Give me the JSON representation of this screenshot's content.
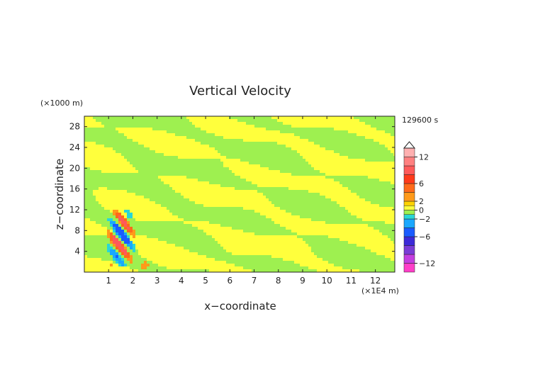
{
  "chart_data": {
    "type": "heatmap",
    "title": "Vertical Velocity",
    "xlabel": "x−coordinate",
    "ylabel": "z−coordinate",
    "x_unit": "(×1E4 m)",
    "y_unit": "(×1000 m)",
    "time_label": "129600 s",
    "xlim": [
      0,
      12.8
    ],
    "ylim": [
      0,
      30
    ],
    "x_ticks": [
      "1",
      "2",
      "3",
      "4",
      "5",
      "6",
      "7",
      "8",
      "9",
      "10",
      "11",
      "12"
    ],
    "y_ticks": [
      "4",
      "8",
      "12",
      "16",
      "20",
      "24",
      "28"
    ],
    "colorbar": {
      "tick_labels": [
        "12",
        "6",
        "2",
        "0",
        "−2",
        "−6",
        "−12"
      ],
      "tick_values": [
        12,
        6,
        2,
        0,
        -2,
        -6,
        -12
      ],
      "levels": [
        {
          "from": -14,
          "to": -12,
          "color": "#ff3ec8"
        },
        {
          "from": -12,
          "to": -10,
          "color": "#c43ee0"
        },
        {
          "from": -10,
          "to": -8,
          "color": "#7a3cd6"
        },
        {
          "from": -8,
          "to": -6,
          "color": "#3c2ad8"
        },
        {
          "from": -6,
          "to": -4,
          "color": "#1a5cff"
        },
        {
          "from": -4,
          "to": -2,
          "color": "#1aa8ff"
        },
        {
          "from": -2,
          "to": -1,
          "color": "#2ad6d6"
        },
        {
          "from": -1,
          "to": 0,
          "color": "#9ef050"
        },
        {
          "from": 0,
          "to": 1,
          "color": "#ffff3c"
        },
        {
          "from": 1,
          "to": 2,
          "color": "#ffd200"
        },
        {
          "from": 2,
          "to": 4,
          "color": "#ff9a1a"
        },
        {
          "from": 4,
          "to": 6,
          "color": "#ff6a1a"
        },
        {
          "from": 6,
          "to": 8,
          "color": "#ff3a1a"
        },
        {
          "from": 8,
          "to": 10,
          "color": "#ff5a5a"
        },
        {
          "from": 10,
          "to": 12,
          "color": "#ff8080"
        },
        {
          "from": 12,
          "to": 14,
          "color": "#ffb0b0"
        }
      ]
    },
    "field_description": {
      "background_level": 0,
      "secondary_level": -1,
      "strong_cell_x_range": [
        0.8,
        2.2
      ],
      "strong_cell_z_range": [
        1,
        12
      ],
      "strong_cell_max": 10,
      "strong_cell_min": -6
    },
    "grid": false
  }
}
